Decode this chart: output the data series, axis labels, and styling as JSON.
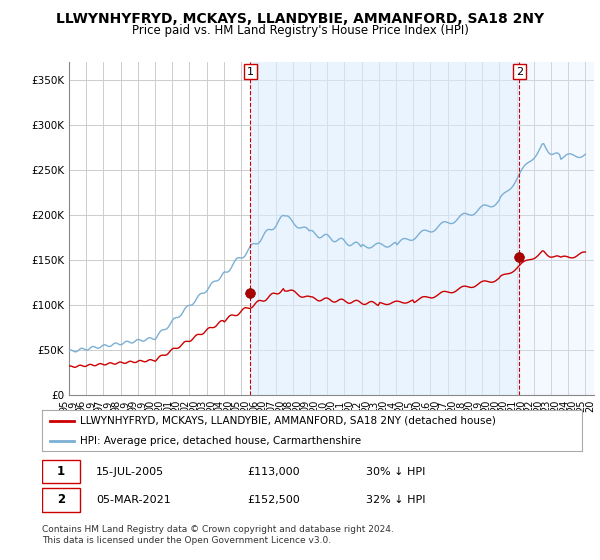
{
  "title": "LLWYNHYFRYD, MCKAYS, LLANDYBIE, AMMANFORD, SA18 2NY",
  "subtitle": "Price paid vs. HM Land Registry's House Price Index (HPI)",
  "ylabel_ticks": [
    "£0",
    "£50K",
    "£100K",
    "£150K",
    "£200K",
    "£250K",
    "£300K",
    "£350K"
  ],
  "ytick_values": [
    0,
    50000,
    100000,
    150000,
    200000,
    250000,
    300000,
    350000
  ],
  "ylim": [
    0,
    370000
  ],
  "xlim_start": 1995.0,
  "xlim_end": 2025.5,
  "sale1_x": 2005.54,
  "sale1_y": 113000,
  "sale1_label": "1",
  "sale2_x": 2021.17,
  "sale2_y": 152500,
  "sale2_label": "2",
  "legend_line1": "LLWYNHYFRYD, MCKAYS, LLANDYBIE, AMMANFORD, SA18 2NY (detached house)",
  "legend_line2": "HPI: Average price, detached house, Carmarthenshire",
  "footer": "Contains HM Land Registry data © Crown copyright and database right 2024.\nThis data is licensed under the Open Government Licence v3.0.",
  "hpi_color": "#7bafd4",
  "hpi_fill_color": "#ddeeff",
  "sale_color": "#cc0000",
  "vline_color": "#cc0000",
  "background_color": "#ffffff",
  "grid_color": "#cccccc",
  "title_fontsize": 10,
  "subtitle_fontsize": 8.5,
  "tick_fontsize": 7.5,
  "legend_fontsize": 7.5,
  "annotation_fontsize": 8,
  "footer_fontsize": 6.5
}
